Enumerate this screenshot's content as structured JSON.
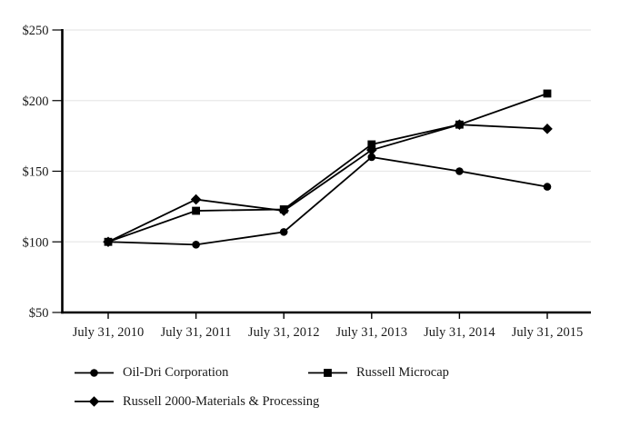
{
  "chart_data": {
    "type": "line",
    "title": "",
    "xlabel": "",
    "ylabel": "",
    "categories": [
      "July 31, 2010",
      "July 31, 2011",
      "July 31, 2012",
      "July 31, 2013",
      "July 31, 2014",
      "July 31, 2015"
    ],
    "series": [
      {
        "name": "Oil-Dri Corporation",
        "marker": "circle",
        "values": [
          100,
          98,
          107,
          160,
          150,
          139
        ]
      },
      {
        "name": "Russell Microcap",
        "marker": "square",
        "values": [
          100,
          122,
          123,
          169,
          183,
          205
        ]
      },
      {
        "name": "Russell 2000-Materials & Processing",
        "marker": "diamond",
        "values": [
          100,
          130,
          122,
          165,
          183,
          180
        ]
      }
    ],
    "ylim": [
      50,
      250
    ],
    "yticks": [
      50,
      100,
      150,
      200,
      250
    ],
    "ytick_labels": [
      "$50",
      "$100",
      "$150",
      "$200",
      "$250"
    ],
    "grid": "horizontal",
    "legend_position": "bottom",
    "colors": {
      "line": "#000000",
      "marker": "#000000",
      "grid": "#e8e8e8",
      "axis": "#000000",
      "text": "#1a1a1a",
      "background": "#ffffff"
    }
  }
}
